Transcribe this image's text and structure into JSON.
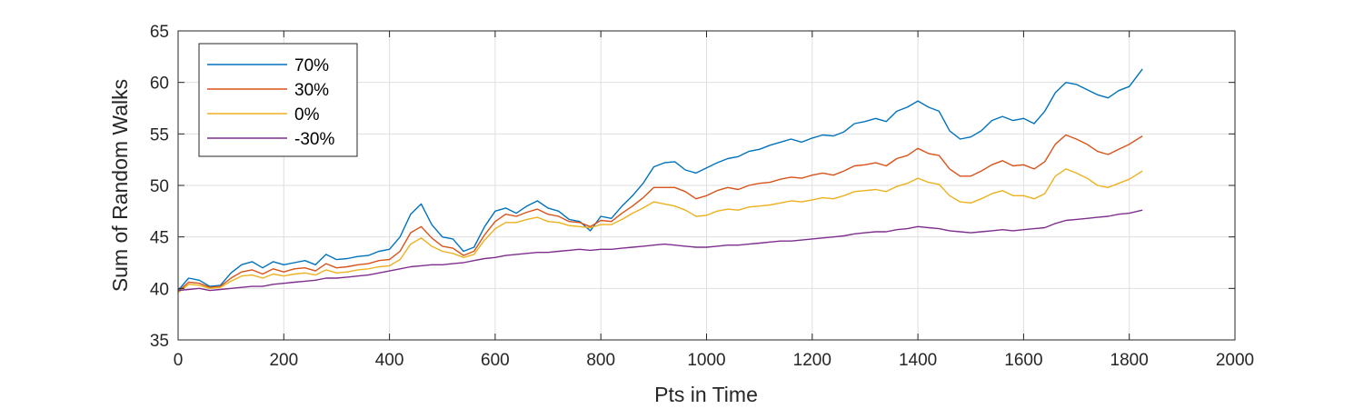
{
  "chart_data": {
    "type": "line",
    "title": "",
    "xlabel": "Pts in Time",
    "ylabel": "Sum of Random Walks",
    "xlim": [
      0,
      2000
    ],
    "ylim": [
      35,
      65
    ],
    "xticks": [
      0,
      200,
      400,
      600,
      800,
      1000,
      1200,
      1400,
      1600,
      1800,
      2000
    ],
    "yticks": [
      35,
      40,
      45,
      50,
      55,
      60,
      65
    ],
    "xtick_labels": [
      "0",
      "200",
      "400",
      "600",
      "800",
      "1000",
      "1200",
      "1400",
      "1600",
      "1800",
      "2000"
    ],
    "ytick_labels": [
      "35",
      "40",
      "45",
      "50",
      "55",
      "60",
      "65"
    ],
    "grid": true,
    "legend_position": "top-left",
    "series": [
      {
        "name": "70%",
        "color": "#0072BD",
        "x": [
          0,
          20,
          40,
          60,
          80,
          100,
          120,
          140,
          160,
          180,
          200,
          220,
          240,
          260,
          280,
          300,
          320,
          340,
          360,
          380,
          400,
          420,
          440,
          460,
          480,
          500,
          520,
          540,
          560,
          580,
          600,
          620,
          640,
          660,
          680,
          700,
          720,
          740,
          760,
          780,
          800,
          820,
          840,
          860,
          880,
          900,
          920,
          940,
          960,
          980,
          1000,
          1020,
          1040,
          1060,
          1080,
          1100,
          1120,
          1140,
          1160,
          1180,
          1200,
          1220,
          1240,
          1260,
          1280,
          1300,
          1320,
          1340,
          1360,
          1380,
          1400,
          1420,
          1440,
          1460,
          1480,
          1500,
          1520,
          1540,
          1560,
          1580,
          1600,
          1620,
          1640,
          1660,
          1680,
          1700,
          1720,
          1740,
          1760,
          1780,
          1800,
          1825
        ],
        "values": [
          39.8,
          41.0,
          40.8,
          40.2,
          40.3,
          41.5,
          42.3,
          42.6,
          42.0,
          42.6,
          42.3,
          42.5,
          42.7,
          42.3,
          43.3,
          42.8,
          42.9,
          43.1,
          43.2,
          43.6,
          43.8,
          45.0,
          47.2,
          48.2,
          46.2,
          45.0,
          44.8,
          43.6,
          44.0,
          46.0,
          47.5,
          47.8,
          47.3,
          48.0,
          48.5,
          47.8,
          47.5,
          46.7,
          46.5,
          45.6,
          47.0,
          46.8,
          48.0,
          49.0,
          50.2,
          51.8,
          52.2,
          52.3,
          51.5,
          51.2,
          51.7,
          52.2,
          52.6,
          52.8,
          53.3,
          53.5,
          53.9,
          54.2,
          54.5,
          54.2,
          54.6,
          54.9,
          54.8,
          55.2,
          56.0,
          56.2,
          56.5,
          56.2,
          57.2,
          57.6,
          58.2,
          57.6,
          57.2,
          55.3,
          54.5,
          54.7,
          55.3,
          56.3,
          56.7,
          56.3,
          56.5,
          56.0,
          57.2,
          59.0,
          60.0,
          59.8,
          59.3,
          58.8,
          58.5,
          59.2,
          59.6,
          61.3
        ]
      },
      {
        "name": "30%",
        "color": "#D95319",
        "x": [
          0,
          20,
          40,
          60,
          80,
          100,
          120,
          140,
          160,
          180,
          200,
          220,
          240,
          260,
          280,
          300,
          320,
          340,
          360,
          380,
          400,
          420,
          440,
          460,
          480,
          500,
          520,
          540,
          560,
          580,
          600,
          620,
          640,
          660,
          680,
          700,
          720,
          740,
          760,
          780,
          800,
          820,
          840,
          860,
          880,
          900,
          920,
          940,
          960,
          980,
          1000,
          1020,
          1040,
          1060,
          1080,
          1100,
          1120,
          1140,
          1160,
          1180,
          1200,
          1220,
          1240,
          1260,
          1280,
          1300,
          1320,
          1340,
          1360,
          1380,
          1400,
          1420,
          1440,
          1460,
          1480,
          1500,
          1520,
          1540,
          1560,
          1580,
          1600,
          1620,
          1640,
          1660,
          1680,
          1700,
          1720,
          1740,
          1760,
          1780,
          1800,
          1825
        ],
        "values": [
          39.7,
          40.6,
          40.5,
          40.1,
          40.2,
          41.0,
          41.6,
          41.8,
          41.4,
          41.9,
          41.6,
          41.9,
          42.0,
          41.7,
          42.4,
          42.0,
          42.1,
          42.3,
          42.4,
          42.7,
          42.8,
          43.6,
          45.4,
          46.0,
          44.9,
          44.1,
          43.9,
          43.2,
          43.6,
          45.2,
          46.5,
          47.2,
          47.0,
          47.4,
          47.7,
          47.2,
          47.0,
          46.5,
          46.4,
          46.0,
          46.6,
          46.5,
          47.3,
          48.0,
          48.8,
          49.8,
          49.8,
          49.8,
          49.4,
          48.7,
          49.0,
          49.5,
          49.8,
          49.6,
          50.0,
          50.2,
          50.3,
          50.6,
          50.8,
          50.7,
          51.0,
          51.2,
          51.0,
          51.4,
          51.9,
          52.0,
          52.2,
          51.9,
          52.6,
          52.9,
          53.6,
          53.1,
          52.9,
          51.6,
          50.9,
          50.9,
          51.4,
          52.0,
          52.4,
          51.9,
          52.0,
          51.6,
          52.3,
          54.0,
          54.9,
          54.5,
          54.0,
          53.3,
          53.0,
          53.5,
          54.0,
          54.8
        ]
      },
      {
        "name": "0%",
        "color": "#EDB120",
        "x": [
          0,
          20,
          40,
          60,
          80,
          100,
          120,
          140,
          160,
          180,
          200,
          220,
          240,
          260,
          280,
          300,
          320,
          340,
          360,
          380,
          400,
          420,
          440,
          460,
          480,
          500,
          520,
          540,
          560,
          580,
          600,
          620,
          640,
          660,
          680,
          700,
          720,
          740,
          760,
          780,
          800,
          820,
          840,
          860,
          880,
          900,
          920,
          940,
          960,
          980,
          1000,
          1020,
          1040,
          1060,
          1080,
          1100,
          1120,
          1140,
          1160,
          1180,
          1200,
          1220,
          1240,
          1260,
          1280,
          1300,
          1320,
          1340,
          1360,
          1380,
          1400,
          1420,
          1440,
          1460,
          1480,
          1500,
          1520,
          1540,
          1560,
          1580,
          1600,
          1620,
          1640,
          1660,
          1680,
          1700,
          1720,
          1740,
          1760,
          1780,
          1800,
          1825
        ],
        "values": [
          39.6,
          40.4,
          40.3,
          40.0,
          40.1,
          40.7,
          41.2,
          41.3,
          41.0,
          41.4,
          41.2,
          41.4,
          41.5,
          41.3,
          41.8,
          41.5,
          41.6,
          41.8,
          41.9,
          42.1,
          42.2,
          42.8,
          44.3,
          44.9,
          44.1,
          43.6,
          43.4,
          43.0,
          43.3,
          44.7,
          45.8,
          46.4,
          46.4,
          46.7,
          46.9,
          46.5,
          46.4,
          46.1,
          46.0,
          45.9,
          46.2,
          46.2,
          46.7,
          47.3,
          47.8,
          48.4,
          48.2,
          48.0,
          47.6,
          47.0,
          47.1,
          47.5,
          47.7,
          47.6,
          47.9,
          48.0,
          48.1,
          48.3,
          48.5,
          48.4,
          48.6,
          48.8,
          48.7,
          49.0,
          49.4,
          49.5,
          49.6,
          49.4,
          49.9,
          50.2,
          50.7,
          50.3,
          50.1,
          49.0,
          48.4,
          48.3,
          48.7,
          49.2,
          49.5,
          49.0,
          49.0,
          48.7,
          49.2,
          50.9,
          51.6,
          51.2,
          50.7,
          50.0,
          49.8,
          50.2,
          50.6,
          51.4
        ]
      },
      {
        "name": "-30%",
        "color": "#7E2F8E",
        "x": [
          0,
          20,
          40,
          60,
          80,
          100,
          120,
          140,
          160,
          180,
          200,
          220,
          240,
          260,
          280,
          300,
          320,
          340,
          360,
          380,
          400,
          420,
          440,
          460,
          480,
          500,
          520,
          540,
          560,
          580,
          600,
          620,
          640,
          660,
          680,
          700,
          720,
          740,
          760,
          780,
          800,
          820,
          840,
          860,
          880,
          900,
          920,
          940,
          960,
          980,
          1000,
          1020,
          1040,
          1060,
          1080,
          1100,
          1120,
          1140,
          1160,
          1180,
          1200,
          1220,
          1240,
          1260,
          1280,
          1300,
          1320,
          1340,
          1360,
          1380,
          1400,
          1420,
          1440,
          1460,
          1480,
          1500,
          1520,
          1540,
          1560,
          1580,
          1600,
          1620,
          1640,
          1660,
          1680,
          1700,
          1720,
          1740,
          1760,
          1780,
          1800,
          1825
        ],
        "values": [
          39.8,
          39.9,
          40.0,
          39.8,
          39.9,
          40.0,
          40.1,
          40.2,
          40.2,
          40.4,
          40.5,
          40.6,
          40.7,
          40.8,
          41.0,
          41.0,
          41.1,
          41.2,
          41.3,
          41.5,
          41.7,
          41.9,
          42.1,
          42.2,
          42.3,
          42.3,
          42.4,
          42.5,
          42.7,
          42.9,
          43.0,
          43.2,
          43.3,
          43.4,
          43.5,
          43.5,
          43.6,
          43.7,
          43.8,
          43.7,
          43.8,
          43.8,
          43.9,
          44.0,
          44.1,
          44.2,
          44.3,
          44.2,
          44.1,
          44.0,
          44.0,
          44.1,
          44.2,
          44.2,
          44.3,
          44.4,
          44.5,
          44.6,
          44.6,
          44.7,
          44.8,
          44.9,
          45.0,
          45.1,
          45.3,
          45.4,
          45.5,
          45.5,
          45.7,
          45.8,
          46.0,
          45.9,
          45.8,
          45.6,
          45.5,
          45.4,
          45.5,
          45.6,
          45.7,
          45.6,
          45.7,
          45.8,
          45.9,
          46.3,
          46.6,
          46.7,
          46.8,
          46.9,
          47.0,
          47.2,
          47.3,
          47.6
        ]
      }
    ]
  }
}
